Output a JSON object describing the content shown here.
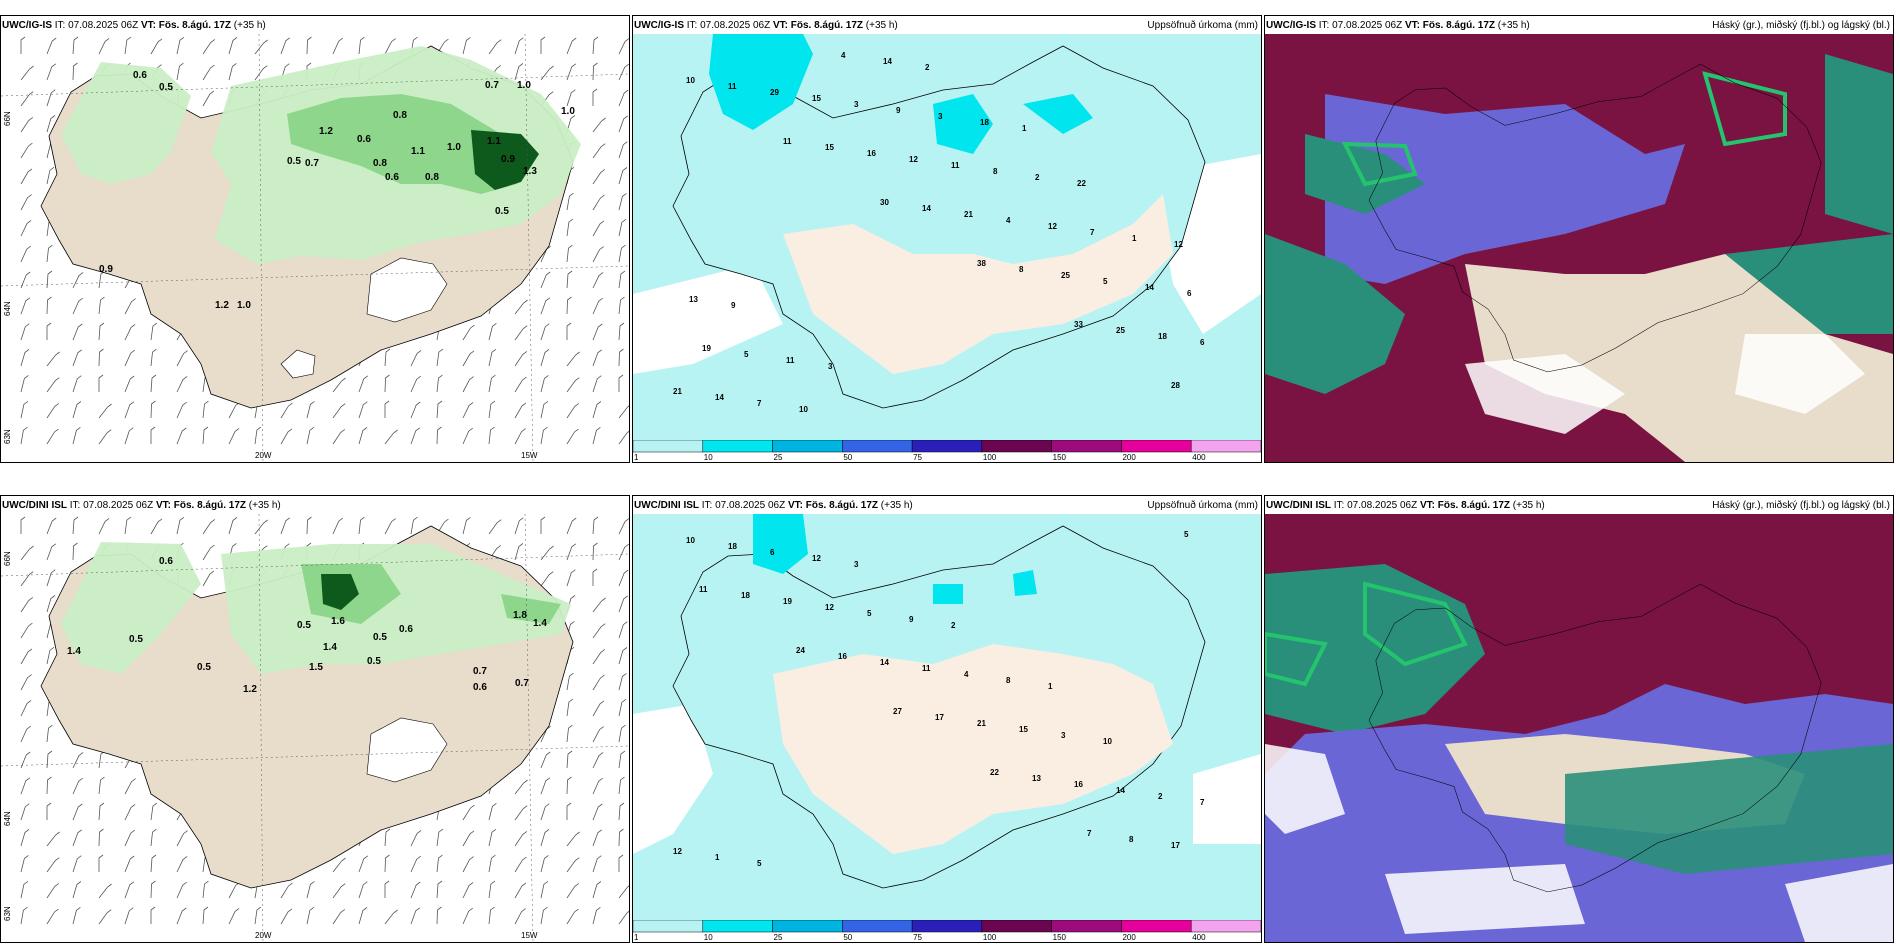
{
  "panels": [
    {
      "id": "p1",
      "model": "UWC/IG-IS",
      "it": "IT: 07.08.2025 06Z",
      "vt_label": "VT:",
      "vt": "Fös. 8.ágú. 17Z",
      "lead": "(+35 h)",
      "right": "",
      "type": "wind"
    },
    {
      "id": "p2",
      "model": "UWC/IG-IS",
      "it": "IT: 07.08.2025 06Z",
      "vt_label": "VT:",
      "vt": "Fös. 8.ágú. 17Z",
      "lead": "(+35 h)",
      "right": "Uppsöfnuð úrkoma (mm)",
      "type": "precip"
    },
    {
      "id": "p3",
      "model": "UWC/IG-IS",
      "it": "IT: 07.08.2025 06Z",
      "vt_label": "VT:",
      "vt": "Fös. 8.ágú. 17Z",
      "lead": "(+35 h)",
      "right": "Háský (gr.), miðský (fj.bl.) og lágský (bl.)",
      "type": "cloud"
    },
    {
      "id": "p4",
      "model": "UWC/DINI ISL",
      "it": "IT: 07.08.2025 06Z",
      "vt_label": "VT:",
      "vt": "Fös. 8.ágú. 17Z",
      "lead": "(+35 h)",
      "right": "",
      "type": "wind"
    },
    {
      "id": "p5",
      "model": "UWC/DINI ISL",
      "it": "IT: 07.08.2025 06Z",
      "vt_label": "VT:",
      "vt": "Fös. 8.ágú. 17Z",
      "lead": "(+35 h)",
      "right": "Uppsöfnuð úrkoma (mm)",
      "type": "precip"
    },
    {
      "id": "p6",
      "model": "UWC/DINI ISL",
      "it": "IT: 07.08.2025 06Z",
      "vt_label": "VT:",
      "vt": "Fös. 8.ágú. 17Z",
      "lead": "(+35 h)",
      "right": "Háský (gr.), miðský (fj.bl.) og lágský (bl.)",
      "type": "cloud"
    }
  ],
  "wind_labels": {
    "p1": [
      "0.6",
      "0.5",
      "0.7",
      "1.0",
      "1.0",
      "0.8",
      "1.2",
      "0.6",
      "1.1",
      "1.0",
      "1.1",
      "0.9",
      "0.8",
      "0.6",
      "0.5",
      "0.7",
      "0.8",
      "0.5",
      "0.9",
      "1.2",
      "1.0",
      "1.3"
    ],
    "p4": [
      "0.6",
      "1.4",
      "0.5",
      "0.5",
      "1.2",
      "0.5",
      "1.6",
      "1.4",
      "1.5",
      "0.5",
      "0.6",
      "0.5",
      "1.8",
      "1.4",
      "0.7",
      "0.6",
      "0.7"
    ]
  },
  "precip_values": {
    "p2": [
      "10",
      "11",
      "30",
      "38",
      "33",
      "28",
      "11",
      "15",
      "14",
      "8",
      "25",
      "21",
      "29",
      "16",
      "21",
      "25",
      "18",
      "14",
      "15",
      "12",
      "4",
      "5",
      "6",
      "7",
      "3",
      "11",
      "12",
      "14",
      "19",
      "10",
      "9",
      "8",
      "7",
      "6",
      "5",
      "4",
      "3",
      "2",
      "1",
      "13",
      "11",
      "14",
      "18",
      "22",
      "12",
      "9",
      "3",
      "2",
      "1"
    ],
    "p5": [
      "11",
      "24",
      "27",
      "22",
      "7",
      "5",
      "18",
      "16",
      "17",
      "13",
      "8",
      "10",
      "19",
      "14",
      "21",
      "16",
      "17",
      "18",
      "12",
      "11",
      "15",
      "14",
      "12",
      "6",
      "5",
      "4",
      "3",
      "2",
      "1",
      "12",
      "9",
      "8",
      "10",
      "7",
      "5",
      "3",
      "2",
      "1"
    ]
  },
  "lon_labels": {
    "a": "20W",
    "b": "15W"
  },
  "lat_labels": {
    "a": "66N",
    "b": "64N",
    "c": "63N"
  },
  "scale": {
    "ticks": [
      "1",
      "10",
      "25",
      "50",
      "75",
      "100",
      "150",
      "200",
      "400"
    ],
    "colors": [
      "#b7f3f3",
      "#00e5ee",
      "#00b4e0",
      "#3464e6",
      "#2a1fb8",
      "#6b0552",
      "#9c0a7c",
      "#e6009c",
      "#f4a3ee"
    ]
  },
  "colors": {
    "land": "#e8dccb",
    "sea_precip": "#b7f3f3",
    "green_light": "#c9eec5",
    "green_mid": "#8fd68d",
    "green_dark": "#0e5a1c",
    "cloud_red": "#7a1242",
    "cloud_blue": "#6a66d6",
    "cloud_teal": "#2a8f7a",
    "cloud_green": "#24c46e"
  }
}
